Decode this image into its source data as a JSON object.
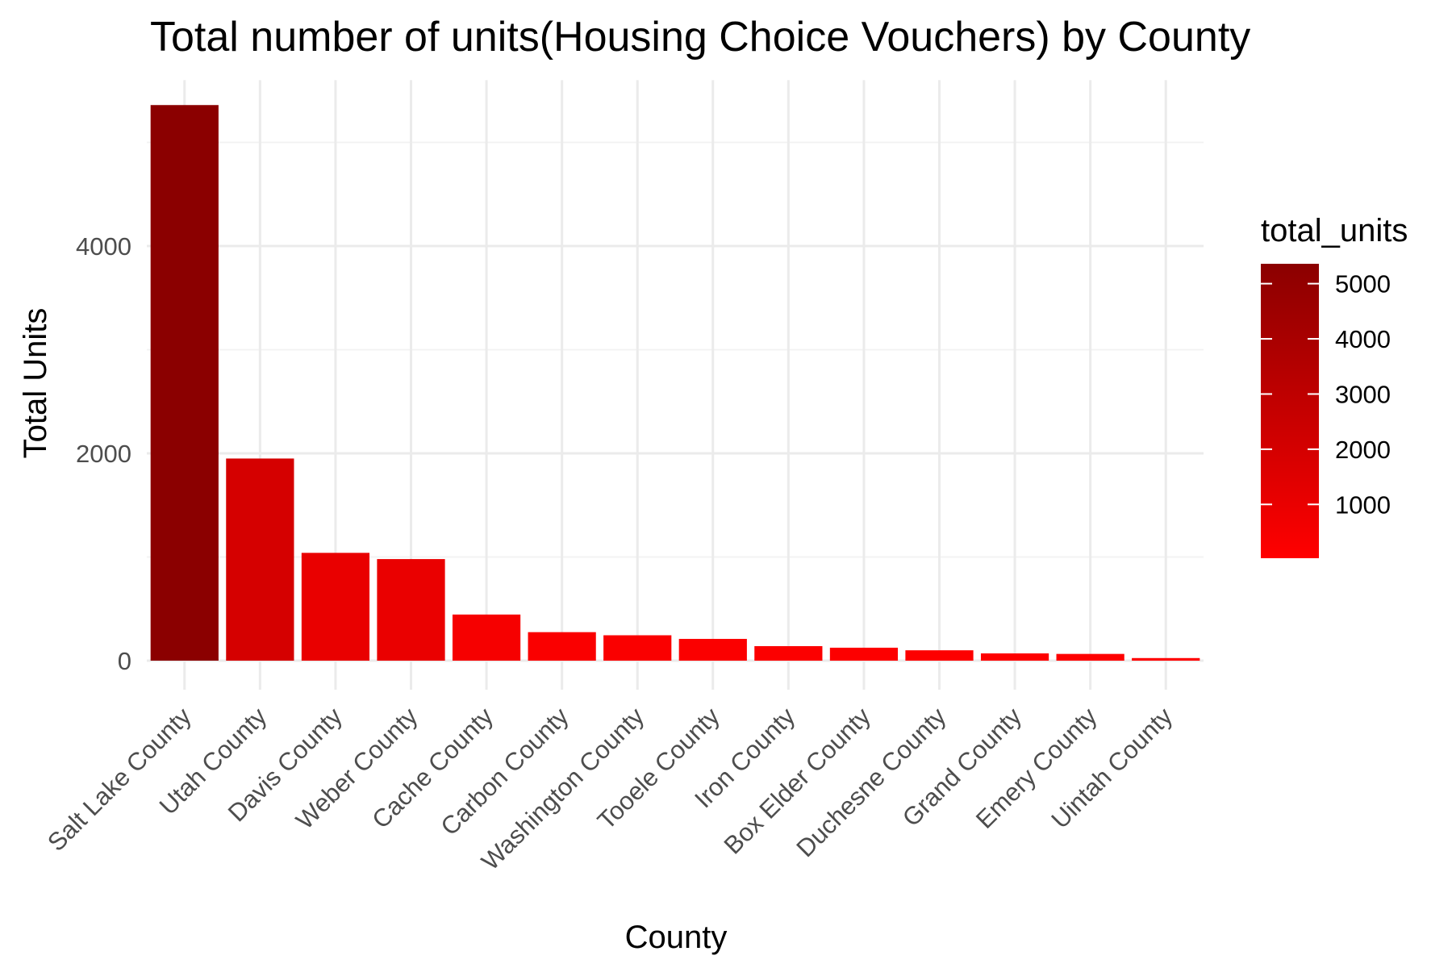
{
  "chart_data": {
    "type": "bar",
    "title": "Total number of units(Housing Choice Vouchers) by County",
    "xlabel": "County",
    "ylabel": "Total Units",
    "categories": [
      "Salt Lake County",
      "Utah County",
      "Davis County",
      "Weber County",
      "Cache County",
      "Carbon County",
      "Washington County",
      "Tooele County",
      "Iron County",
      "Box Elder County",
      "Duchesne County",
      "Grand County",
      "Emery County",
      "Uintah County"
    ],
    "values": [
      5360,
      1950,
      1040,
      980,
      445,
      275,
      245,
      210,
      140,
      125,
      100,
      70,
      65,
      25
    ],
    "ylim": [
      0,
      5600
    ],
    "y_ticks": [
      0,
      2000,
      4000
    ],
    "y_tick_labels": [
      "0",
      "2000",
      "4000"
    ],
    "grid": true,
    "legend": {
      "title": "total_units",
      "placement": "right",
      "type": "colorbar",
      "ticks": [
        1000,
        2000,
        3000,
        4000,
        5000
      ],
      "tick_labels": [
        "1000",
        "2000",
        "3000",
        "4000",
        "5000"
      ],
      "range": [
        25,
        5360
      ],
      "color_low": "#ff0000",
      "color_high": "#8b0000"
    }
  }
}
